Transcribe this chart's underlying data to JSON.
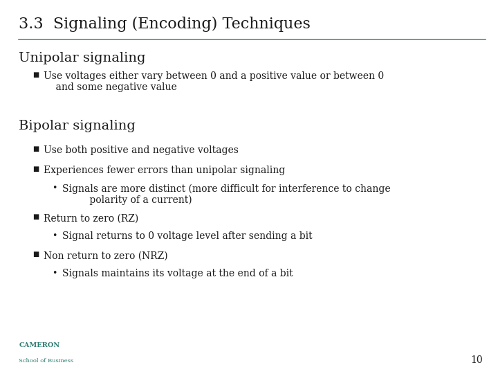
{
  "title": "3.3  Signaling (Encoding) Techniques",
  "title_color": "#1a1a1a",
  "title_fontsize": 16,
  "background_color": "#ffffff",
  "line_color": "#5a8a7a",
  "section1_heading": "Unipolar signaling",
  "section1_heading_color": "#1a1a1a",
  "section1_heading_fontsize": 14,
  "section1_bullet": "Use voltages either vary between 0 and a positive value or between 0\n    and some negative value",
  "section2_heading": "Bipolar signaling",
  "section2_heading_color": "#1a1a1a",
  "section2_heading_fontsize": 14,
  "s2_b1": "Use both positive and negative voltages",
  "s2_b2": "Experiences fewer errors than unipolar signaling",
  "s2_sub1": "Signals are more distinct (more difficult for interference to change\n         polarity of a current)",
  "s2_b3": "Return to zero (RZ)",
  "s2_sub2": "Signal returns to 0 voltage level after sending a bit",
  "s2_b4": "Non return to zero (NRZ)",
  "s2_sub3": "Signals maintains its voltage at the end of a bit",
  "bullet_color": "#1a1a1a",
  "bullet_fontsize": 10,
  "sub_bullet_fontsize": 10,
  "footer_line1": "CAMERON",
  "footer_line2": "School of Business",
  "footer_color": "#2e7d72",
  "footer_fontsize1": 7,
  "footer_fontsize2": 6,
  "page_number": "10",
  "page_number_color": "#1a1a1a",
  "page_number_fontsize": 10
}
